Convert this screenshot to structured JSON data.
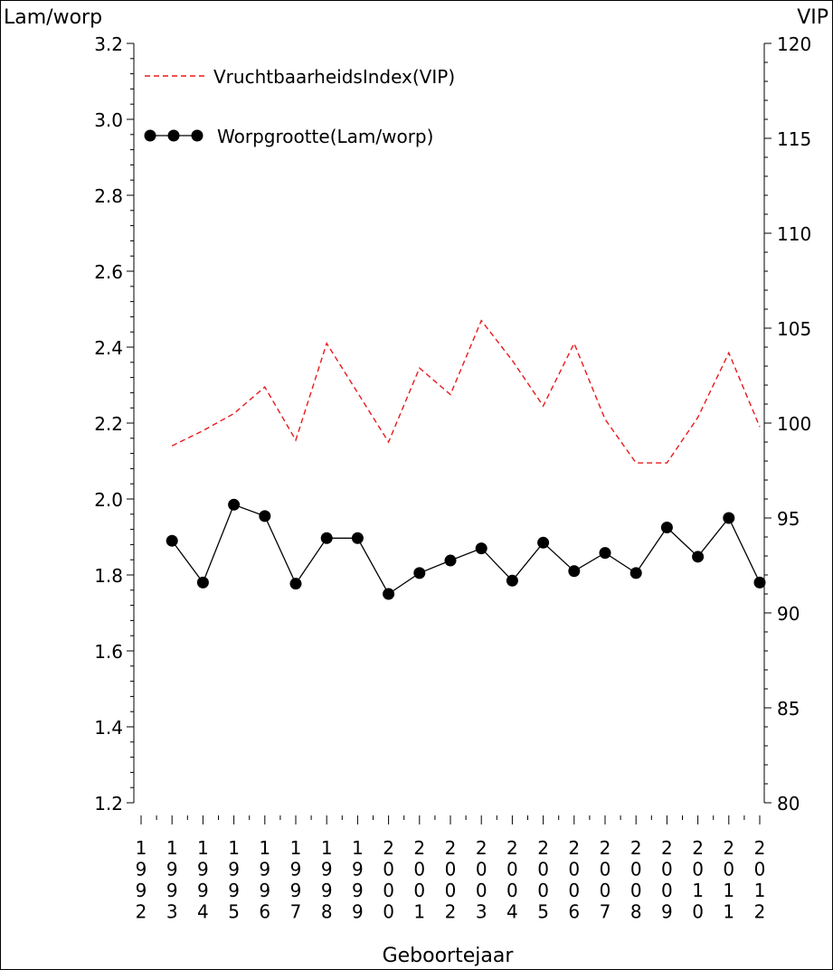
{
  "chart_data": {
    "type": "line",
    "title": "",
    "xlabel": "Geboortejaar",
    "y_left_label": "Lam/worp",
    "y_right_label": "VIP",
    "y_left_lim": [
      1.2,
      3.2
    ],
    "y_right_lim": [
      80,
      120
    ],
    "y_left_ticks": [
      "1.2",
      "1.4",
      "1.6",
      "1.8",
      "2.0",
      "2.2",
      "2.4",
      "2.6",
      "2.8",
      "3.0",
      "3.2"
    ],
    "y_right_ticks": [
      "80",
      "85",
      "90",
      "95",
      "100",
      "105",
      "110",
      "115",
      "120"
    ],
    "categories": [
      "1992",
      "1993",
      "1994",
      "1995",
      "1996",
      "1997",
      "1998",
      "1999",
      "2000",
      "2001",
      "2002",
      "2003",
      "2004",
      "2005",
      "2006",
      "2007",
      "2008",
      "2009",
      "2010",
      "2011",
      "2012"
    ],
    "grid": false,
    "legend_position": "top-left",
    "series": [
      {
        "name": "VruchtbaarheidsIndex(VIP)",
        "axis": "right",
        "style": "dashed",
        "color": "#e8191c",
        "values": [
          null,
          98.8,
          99.6,
          100.5,
          101.9,
          99.1,
          104.2,
          101.6,
          99.0,
          102.9,
          101.5,
          105.4,
          103.3,
          100.9,
          104.2,
          100.2,
          97.9,
          97.9,
          100.3,
          103.7,
          99.8
        ]
      },
      {
        "name": "Worpgrootte(Lam/worp)",
        "axis": "left",
        "style": "solid-markers",
        "color": "#000000",
        "values": [
          null,
          1.89,
          1.78,
          1.985,
          1.955,
          1.777,
          1.897,
          1.897,
          1.75,
          1.805,
          1.838,
          1.87,
          1.785,
          1.885,
          1.81,
          1.858,
          1.805,
          1.925,
          1.848,
          1.95,
          1.78
        ]
      }
    ]
  }
}
